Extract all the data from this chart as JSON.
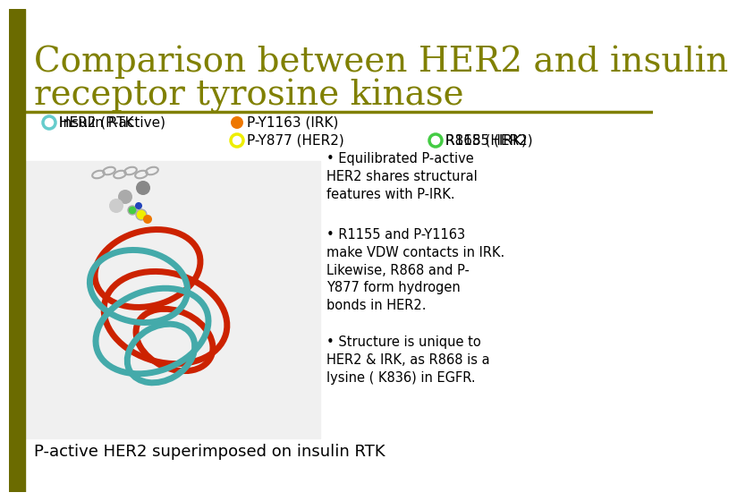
{
  "title_line1": "Comparison between HER2 and insulin",
  "title_line2": "receptor tyrosine kinase",
  "title_color": "#808000",
  "bg_color": "#ffffff",
  "separator_color": "#808000",
  "legend_items": [
    {
      "label": "HER2 (P-active)",
      "color": "#cc2200",
      "hollow": false,
      "col": 0
    },
    {
      "label": "Insulin RTK",
      "color": "#66cccc",
      "hollow": true,
      "col": 0
    },
    {
      "label": "P-Y1163 (IRK)",
      "color": "#ee7700",
      "hollow": false,
      "col": 1
    },
    {
      "label": "P-Y877 (HER2)",
      "color": "#eeee00",
      "hollow": true,
      "col": 1
    },
    {
      "label": "R1155 (IRK)",
      "color": "#2244bb",
      "hollow": false,
      "col": 2
    },
    {
      "label": "R868 (HER2)",
      "color": "#44cc44",
      "hollow": true,
      "col": 2
    }
  ],
  "bullet_points": [
    "Equilibrated P-active\nHER2 shares structural\nfeatures with P-IRK.",
    "R1155 and P-Y1163\nmake VDW contacts in IRK.\nLikewise, R868 and P-\nY877 form hydrogen\nbonds in HER2.",
    "Structure is unique to\nHER2 & IRK, as R868 is a\nlysine ( K836) in EGFR."
  ],
  "caption": "P-active HER2 superimposed on insulin RTK",
  "caption_color": "#000000",
  "text_color": "#000000"
}
